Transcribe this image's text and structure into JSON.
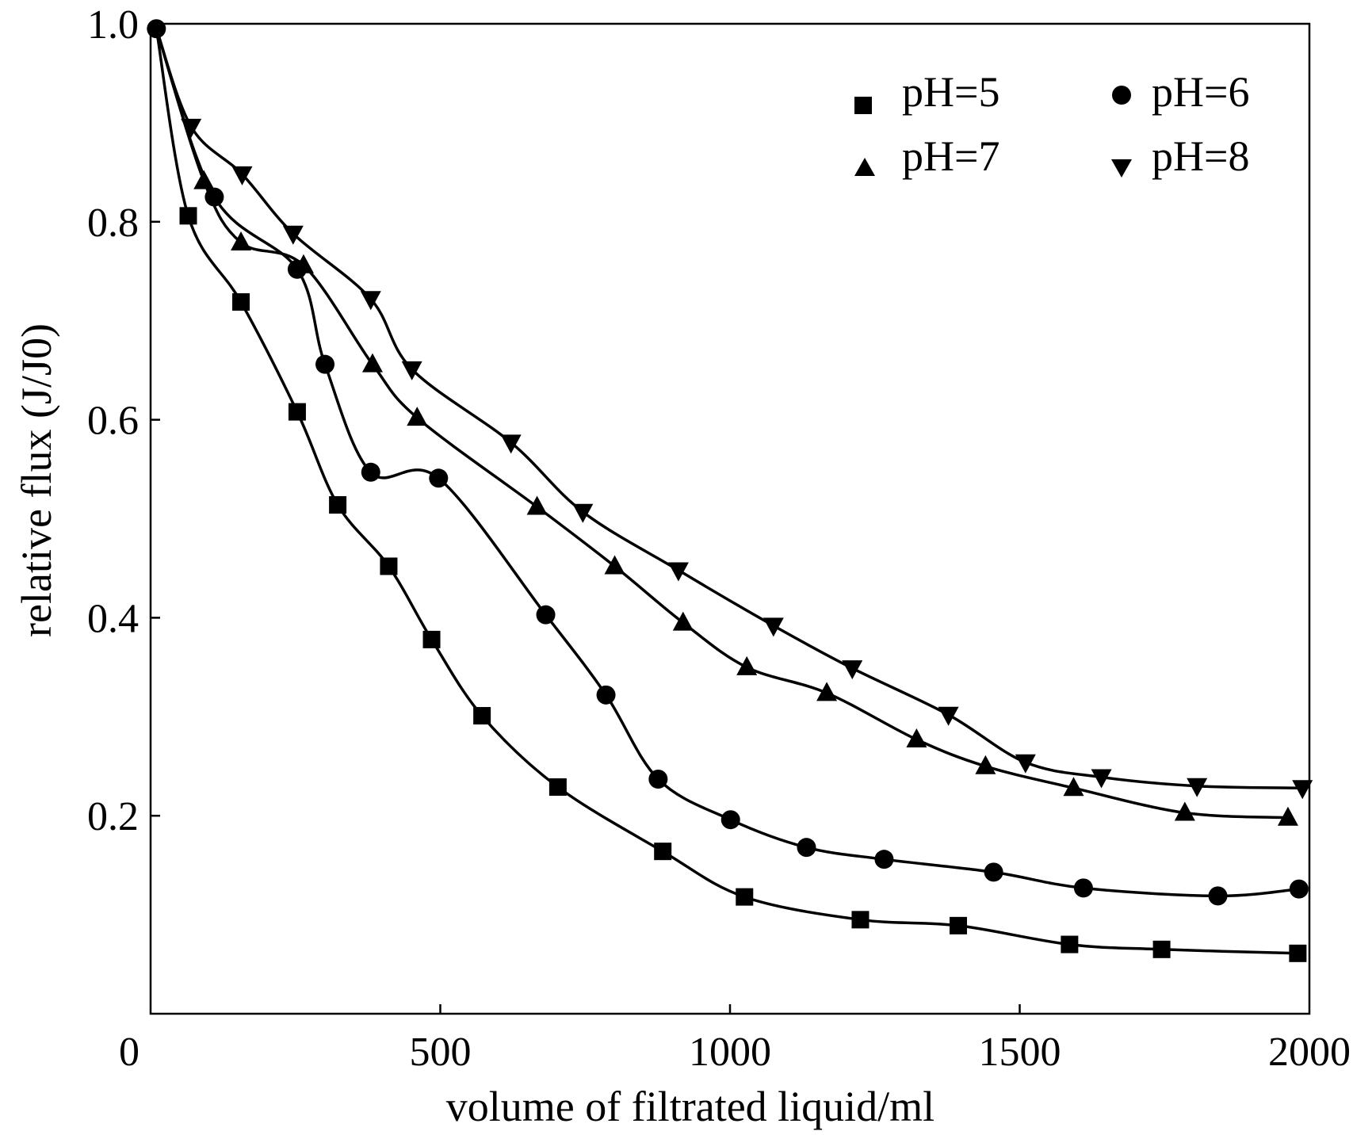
{
  "chart_data": {
    "type": "line",
    "title": "",
    "xlabel": "volume of filtrated liquid/ml",
    "ylabel": "relative flux (J/J0)",
    "xlim": [
      0,
      2000
    ],
    "ylim": [
      0,
      1.0
    ],
    "xticks": [
      "0",
      "500",
      "1000",
      "1500",
      "2000"
    ],
    "yticks": [
      "0.2",
      "0.4",
      "0.6",
      "0.8",
      "1.0"
    ],
    "grid": false,
    "legend_position": "top-right",
    "series": [
      {
        "name": "pH=5",
        "marker": "square",
        "start_marker": false,
        "x": [
          10,
          65,
          156,
          253,
          323,
          411,
          485,
          572,
          703,
          884,
          1025,
          1225,
          1394,
          1586,
          1745,
          1980
        ],
        "y": [
          0.995,
          0.806,
          0.719,
          0.608,
          0.514,
          0.452,
          0.378,
          0.301,
          0.229,
          0.164,
          0.118,
          0.095,
          0.089,
          0.07,
          0.065,
          0.061
        ]
      },
      {
        "name": "pH=6",
        "marker": "circle",
        "start_marker": true,
        "x": [
          10,
          110,
          253,
          301,
          380,
          497,
          682,
          786,
          876,
          1001,
          1132,
          1266,
          1455,
          1610,
          1842,
          1982
        ],
        "y": [
          0.995,
          0.825,
          0.752,
          0.656,
          0.547,
          0.541,
          0.403,
          0.322,
          0.237,
          0.196,
          0.168,
          0.156,
          0.143,
          0.127,
          0.119,
          0.126
        ]
      },
      {
        "name": "pH=7",
        "marker": "triangle-up",
        "start_marker": false,
        "x": [
          10,
          92,
          156,
          264,
          383,
          460,
          667,
          801,
          919,
          1029,
          1167,
          1322,
          1441,
          1593,
          1785,
          1963
        ],
        "y": [
          0.995,
          0.841,
          0.779,
          0.756,
          0.656,
          0.602,
          0.512,
          0.452,
          0.395,
          0.35,
          0.324,
          0.277,
          0.25,
          0.228,
          0.203,
          0.198
        ]
      },
      {
        "name": "pH=8",
        "marker": "triangle-down",
        "start_marker": false,
        "x": [
          10,
          70,
          158,
          246,
          380,
          451,
          622,
          746,
          911,
          1075,
          1211,
          1377,
          1510,
          1641,
          1806,
          1988
        ],
        "y": [
          0.995,
          0.896,
          0.848,
          0.788,
          0.722,
          0.651,
          0.577,
          0.507,
          0.448,
          0.392,
          0.349,
          0.302,
          0.254,
          0.239,
          0.23,
          0.228
        ]
      }
    ]
  }
}
